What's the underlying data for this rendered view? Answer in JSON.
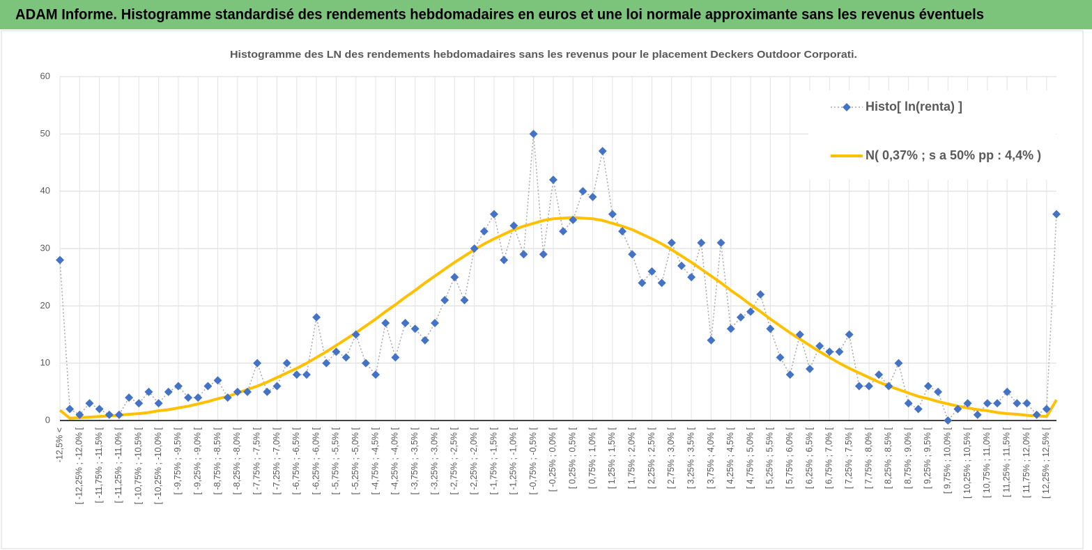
{
  "header": {
    "title": "ADAM Informe. Histogramme standardisé des rendements hebdomadaires en euros et une loi normale approximante sans les revenus éventuels"
  },
  "chart_data": {
    "type": "line",
    "title": "Histogramme  des LN des rendements hebdomadaires sans les revenus pour le placement Deckers Outdoor Corporati.",
    "categories": [
      "-12,5% <",
      null,
      "[ -12,25% ; -12,0% [",
      null,
      "[ -11,75% ; -11,5% [",
      null,
      "[ -11,25% ; -11,0% [",
      null,
      "[ -10,75% ; -10,5% [",
      null,
      "[ -10,25% ; -10,0% [",
      null,
      "[ -9,75% ; -9,5% [",
      null,
      "[ -9,25% ; -9,0% [",
      null,
      "[ -8,75% ; -8,5% [",
      null,
      "[ -8,25% ; -8,0% [",
      null,
      "[ -7,75% ; -7,5% [",
      null,
      "[ -7,25% ; -7,0% [",
      null,
      "[ -6,75% ; -6,5% [",
      null,
      "[ -6,25% ; -6,0% [",
      null,
      "[ -5,75% ; -5,5% [",
      null,
      "[ -5,25% ; -5,0% [",
      null,
      "[ -4,75% ; -4,5% [",
      null,
      "[ -4,25% ; -4,0% [",
      null,
      "[ -3,75% ; -3,5% [",
      null,
      "[ -3,25% ; -3,0% [",
      null,
      "[ -2,75% ; -2,5% [",
      null,
      "[ -2,25% ; -2,0% [",
      null,
      "[ -1,75% ; -1,5% [",
      null,
      "[ -1,25% ; -1,0% [",
      null,
      "[ -0,75% ; -0,5% [",
      null,
      "[ -0,25% ; 0,0% [",
      null,
      "[ 0,25% ; 0,5% [",
      null,
      "[ 0,75% ; 1,0% [",
      null,
      "[ 1,25% ; 1,5% [",
      null,
      "[ 1,75% ; 2,0% [",
      null,
      "[ 2,25% ; 2,5% [",
      null,
      "[ 2,75% ; 3,0% [",
      null,
      "[ 3,25% ; 3,5% [",
      null,
      "[ 3,75% ; 4,0% [",
      null,
      "[ 4,25% ; 4,5% [",
      null,
      "[ 4,75% ; 5,0% [",
      null,
      "[ 5,25% ; 5,5% [",
      null,
      "[ 5,75% ; 6,0% [",
      null,
      "[ 6,25% ; 6,5% [",
      null,
      "[ 6,75% ; 7,0% [",
      null,
      "[ 7,25% ; 7,5% [",
      null,
      "[ 7,75% ; 8,0% [",
      null,
      "[ 8,25% ; 8,5% [",
      null,
      "[ 8,75% ; 9,0% [",
      null,
      "[ 9,25% ; 9,5% [",
      null,
      "[ 9,75% ; 10,0% [",
      null,
      "[ 10,25% ; 10,5% [",
      null,
      "[ 10,75% ; 11,0% [",
      null,
      "[ 11,25% ; 11,5% [",
      null,
      "[ 11,75% ; 12,0% [",
      null,
      "[ 12,25% ; 12,5% [",
      null
    ],
    "series": [
      {
        "name": "Histo[ ln(renta) ]",
        "color": "#4472c4",
        "values": [
          28,
          2,
          1,
          3,
          2,
          1,
          1,
          4,
          3,
          5,
          3,
          5,
          6,
          4,
          4,
          6,
          7,
          4,
          5,
          5,
          10,
          5,
          6,
          10,
          8,
          8,
          18,
          10,
          12,
          11,
          15,
          10,
          8,
          17,
          11,
          17,
          16,
          14,
          17,
          21,
          25,
          21,
          30,
          33,
          36,
          28,
          34,
          29,
          50,
          29,
          42,
          33,
          35,
          40,
          39,
          47,
          36,
          33,
          29,
          24,
          26,
          24,
          31,
          27,
          25,
          31,
          14,
          31,
          16,
          18,
          19,
          22,
          16,
          11,
          8,
          15,
          9,
          13,
          12,
          12,
          15,
          6,
          6,
          8,
          6,
          10,
          3,
          2,
          6,
          5,
          0,
          2,
          3,
          1,
          3,
          3,
          5,
          3,
          3,
          1,
          2,
          36
        ]
      },
      {
        "name": "N( 0,37% ; s a 50% pp : 4,4% )",
        "color": "#ffc000",
        "values": [
          1.8,
          0.4,
          0.5,
          0.6,
          0.7,
          0.8,
          0.9,
          1.1,
          1.2,
          1.4,
          1.7,
          1.9,
          2.2,
          2.5,
          2.9,
          3.3,
          3.8,
          4.2,
          4.8,
          5.4,
          6.0,
          6.7,
          7.5,
          8.3,
          9.1,
          10.0,
          11.0,
          12.0,
          13.1,
          14.2,
          15.3,
          16.5,
          17.7,
          19.0,
          20.2,
          21.5,
          22.7,
          24.0,
          25.2,
          26.4,
          27.6,
          28.7,
          29.8,
          30.8,
          31.7,
          32.5,
          33.3,
          33.9,
          34.4,
          34.9,
          35.2,
          35.3,
          35.4,
          35.3,
          35.2,
          34.9,
          34.4,
          33.9,
          33.3,
          32.5,
          31.7,
          30.8,
          29.8,
          28.7,
          27.6,
          26.4,
          25.2,
          24.0,
          22.7,
          21.5,
          20.2,
          19.0,
          17.7,
          16.5,
          15.3,
          14.2,
          13.1,
          12.0,
          11.0,
          10.0,
          9.1,
          8.3,
          7.5,
          6.7,
          6.0,
          5.4,
          4.8,
          4.2,
          3.8,
          3.3,
          2.9,
          2.5,
          2.2,
          1.9,
          1.7,
          1.4,
          1.2,
          1.1,
          0.9,
          0.8,
          0.7,
          3.6
        ]
      }
    ],
    "ylim": [
      0,
      60
    ],
    "yticks": [
      0,
      10,
      20,
      30,
      40,
      50,
      60
    ],
    "grid": true,
    "legend": "top-right"
  }
}
